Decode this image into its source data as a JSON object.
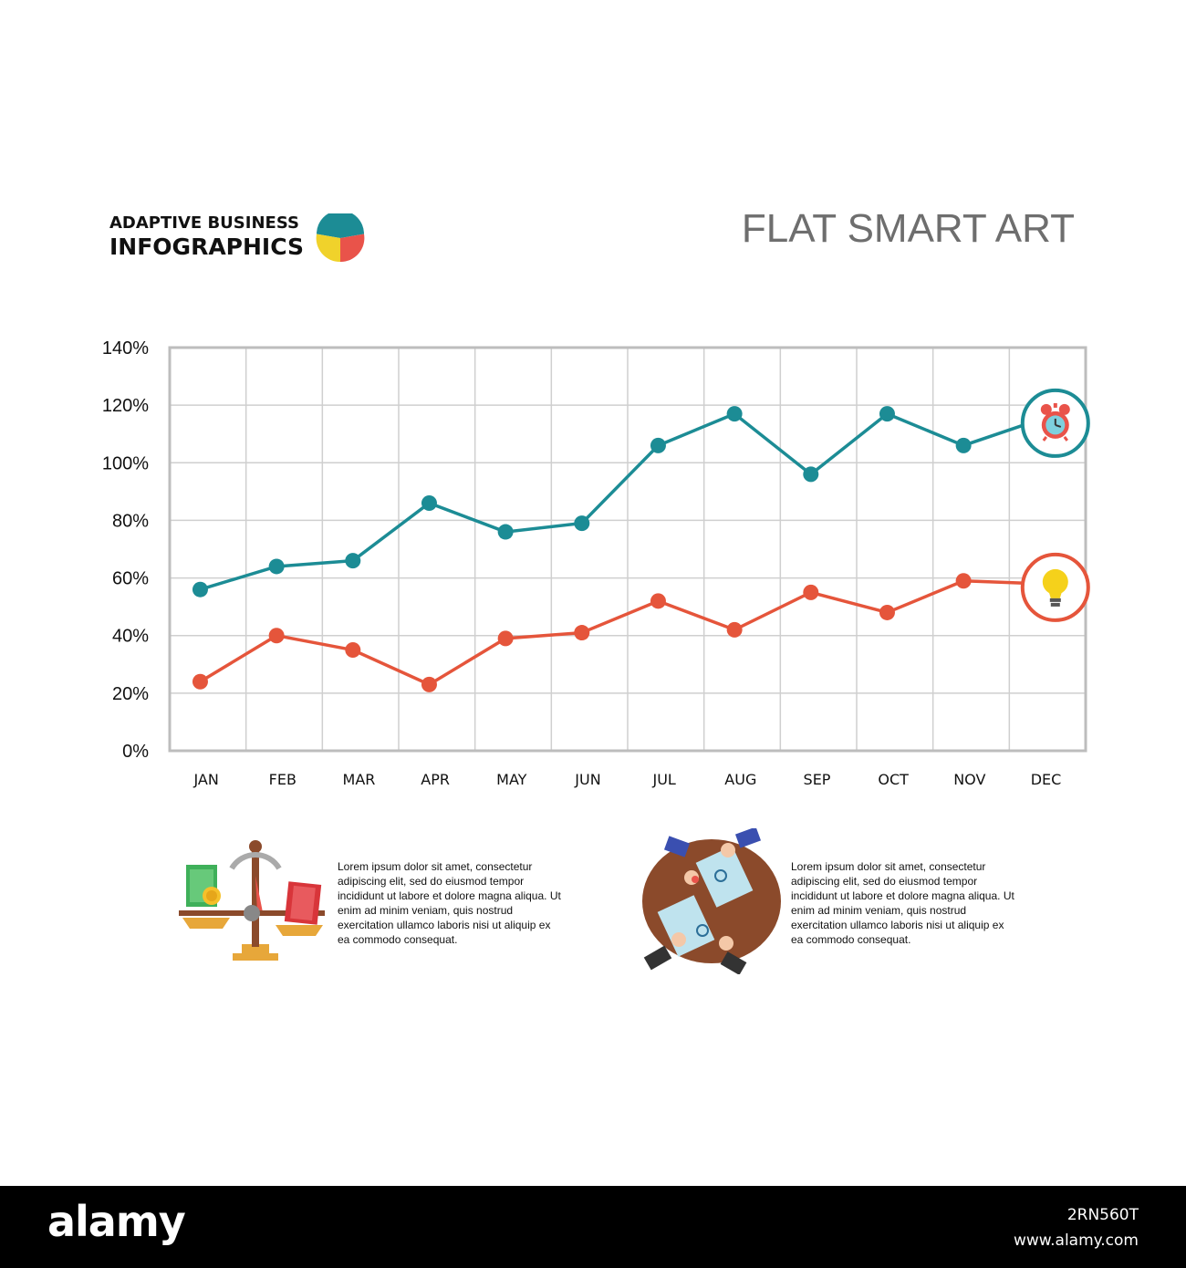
{
  "brand": {
    "line1": "ADAPTIVE BUSINESS",
    "line2": "INFOGRAPHICS",
    "logo_colors": [
      "#1c8c95",
      "#f0d22b",
      "#e9534a"
    ]
  },
  "page_title": "FLAT SMART ART",
  "chart_data": {
    "type": "line",
    "categories": [
      "JAN",
      "FEB",
      "MAR",
      "APR",
      "MAY",
      "JUN",
      "JUL",
      "AUG",
      "SEP",
      "OCT",
      "NOV",
      "DEC"
    ],
    "ylim": [
      0,
      140
    ],
    "yticks": [
      0,
      20,
      40,
      60,
      80,
      100,
      120,
      140
    ],
    "ytick_labels": [
      "0%",
      "20%",
      "40%",
      "60%",
      "80%",
      "100%",
      "120%",
      "140%"
    ],
    "grid": true,
    "series": [
      {
        "color": "#1c8c95",
        "values": [
          56,
          64,
          66,
          86,
          76,
          79,
          106,
          117,
          96,
          117,
          106,
          115
        ],
        "end_icon": "alarm-clock-icon"
      },
      {
        "color": "#e5553b",
        "values": [
          24,
          40,
          35,
          23,
          39,
          41,
          52,
          42,
          55,
          48,
          59,
          58
        ],
        "end_icon": "light-bulb-icon"
      }
    ]
  },
  "info_blocks": [
    {
      "icon": "balance-scale-icon",
      "text": "Lorem ipsum dolor sit amet, consectetur adipiscing elit, sed do eiusmod tempor incididunt ut labore et dolore magna aliqua. Ut enim ad minim veniam, quis nostrud exercitation ullamco laboris nisi ut aliquip ex ea commodo consequat."
    },
    {
      "icon": "business-meeting-icon",
      "text": "Lorem ipsum dolor sit amet, consectetur adipiscing elit, sed do eiusmod tempor incididunt ut labore et dolore magna aliqua. Ut enim ad minim veniam, quis nostrud exercitation ullamco laboris nisi ut aliquip ex ea commodo consequat."
    }
  ],
  "footer": {
    "logo": "alamy",
    "image_id": "2RN560T",
    "url": "www.alamy.com"
  }
}
